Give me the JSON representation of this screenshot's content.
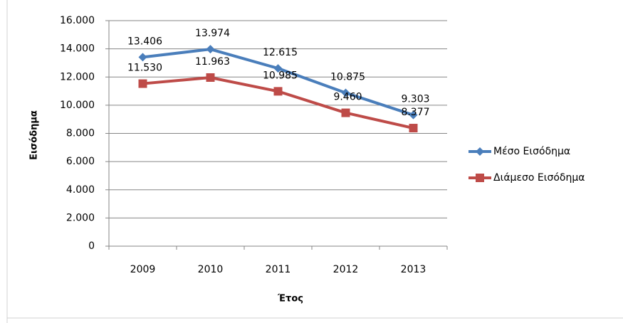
{
  "chart_data": {
    "type": "line",
    "x_label": "Έτος",
    "y_label": "Εισόδημα",
    "categories": [
      "2009",
      "2010",
      "2011",
      "2012",
      "2013"
    ],
    "series": [
      {
        "name": "Μέσο Εισόδημα",
        "color": "#4a7ebb",
        "marker": "diamond",
        "values": [
          13406,
          13974,
          12615,
          10875,
          9303
        ],
        "value_labels": [
          "13.406",
          "13.974",
          "12.615",
          "10.875",
          "9.303"
        ]
      },
      {
        "name": "Διάμεσο Εισόδημα",
        "color": "#be4b48",
        "marker": "square",
        "values": [
          11530,
          11963,
          10985,
          9460,
          8377
        ],
        "value_labels": [
          "11.530",
          "11.963",
          "10.985",
          "9.460",
          "8.377"
        ]
      }
    ],
    "ylim": [
      0,
      16000
    ],
    "yticks": [
      0,
      {
        "value": 2000,
        "label": "2.000"
      },
      {
        "value": 4000,
        "label": "4.000"
      },
      {
        "value": 6000,
        "label": "6.000"
      },
      {
        "value": 8000,
        "label": "8.000"
      },
      {
        "value": 10000,
        "label": "10.000"
      },
      {
        "value": 12000,
        "label": "12.000"
      },
      {
        "value": 14000,
        "label": "14.000"
      },
      {
        "value": 16000,
        "label": "16.000"
      }
    ],
    "grid": true,
    "legend": "right"
  }
}
